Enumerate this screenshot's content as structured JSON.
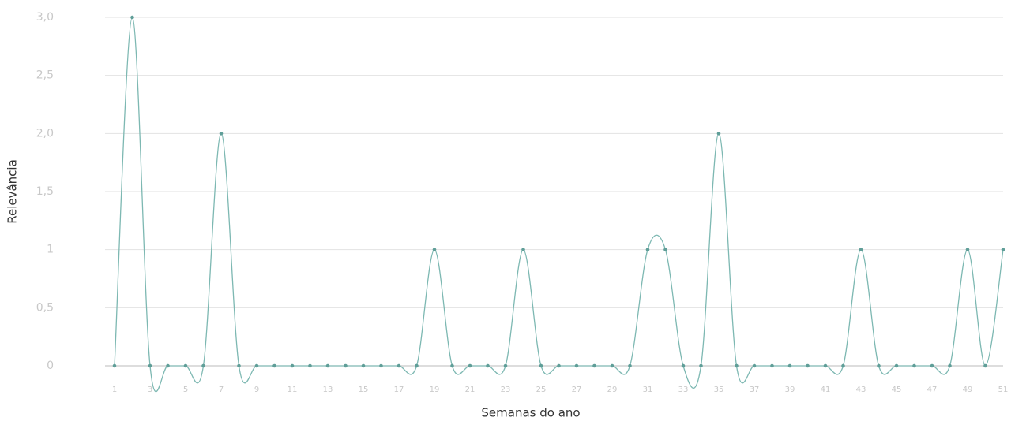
{
  "chart_data": {
    "type": "line",
    "xlabel": "Semanas do ano",
    "ylabel": "Relevância",
    "categories": [
      "1",
      null,
      "3",
      null,
      "5",
      null,
      "7",
      null,
      "9",
      null,
      "11",
      null,
      "13",
      null,
      "15",
      null,
      "17",
      null,
      "19",
      null,
      "21",
      null,
      "23",
      null,
      "25",
      null,
      "27",
      null,
      "29",
      null,
      "31",
      null,
      "33",
      null,
      "35",
      null,
      "37",
      null,
      "39",
      null,
      "41",
      null,
      "43",
      null,
      "45",
      null,
      "47",
      null,
      "49",
      null,
      "51"
    ],
    "series": [
      {
        "name": "Relevância",
        "color": "#7db8b2",
        "values": [
          0,
          3,
          0,
          0,
          0,
          0,
          2,
          0,
          0,
          0,
          0,
          0,
          0,
          0,
          0,
          0,
          0,
          0,
          1,
          0,
          0,
          0,
          0,
          1,
          0,
          0,
          0,
          0,
          0,
          0,
          1,
          1,
          0,
          0,
          2,
          0,
          0,
          0,
          0,
          0,
          0,
          0,
          1,
          0,
          0,
          0,
          0,
          0,
          1,
          0,
          1
        ]
      }
    ],
    "ylim": [
      0,
      3
    ],
    "yticks": [
      0,
      {
        "value": 0.5,
        "label": "0,5"
      },
      1,
      {
        "value": 1.5,
        "label": "1,5"
      },
      {
        "value": 2,
        "label": "2,0"
      },
      {
        "value": 2.5,
        "label": "2,5"
      },
      {
        "value": 3,
        "label": "3,0"
      }
    ],
    "grid": true
  }
}
